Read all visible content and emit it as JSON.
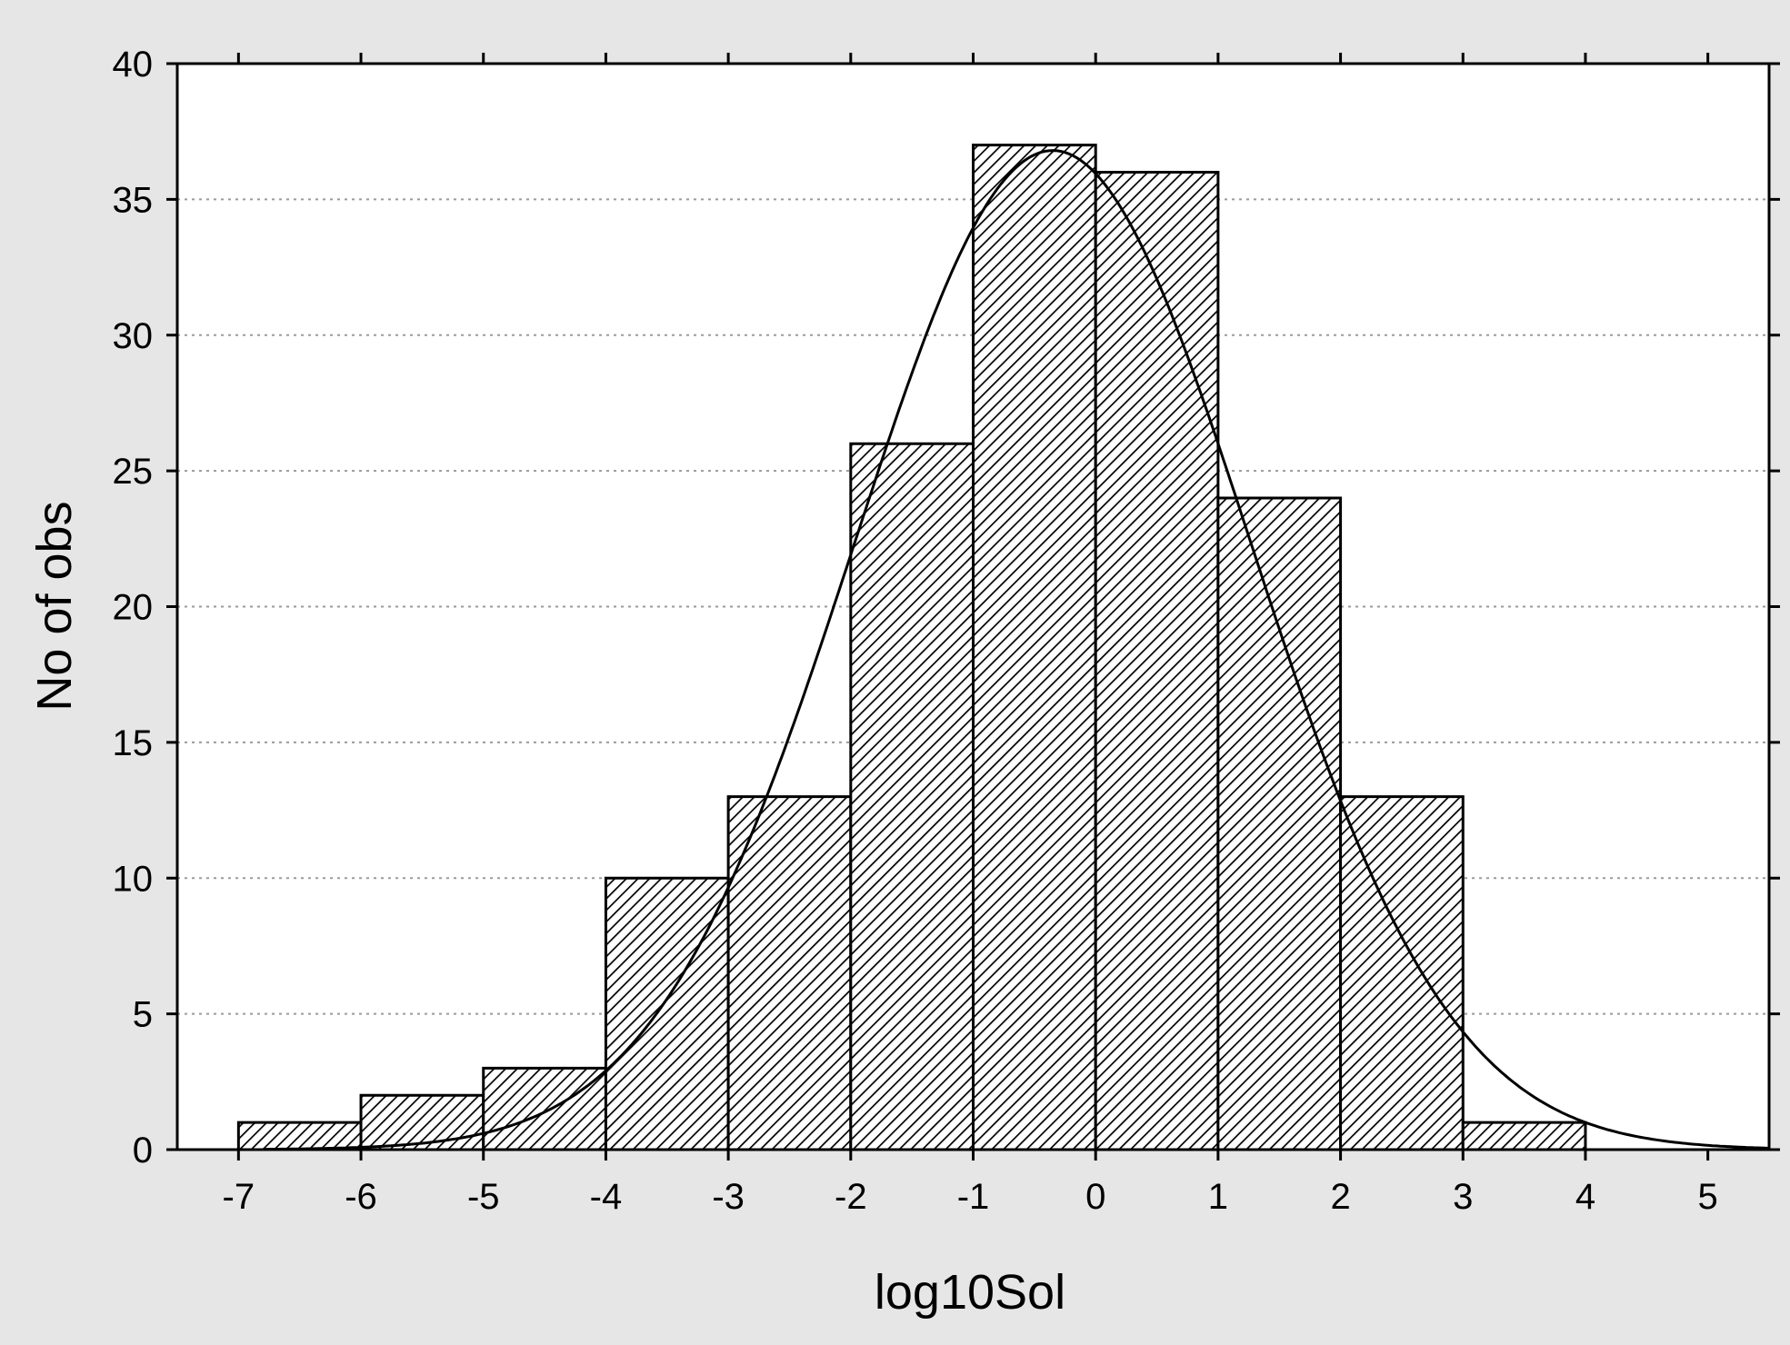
{
  "chart_data": {
    "type": "bar",
    "title": "",
    "xlabel": "log10Sol",
    "ylabel": "No of obs",
    "xlim": [
      -7.5,
      5.5
    ],
    "ylim": [
      0,
      40
    ],
    "x_ticks": [
      -7,
      -6,
      -5,
      -4,
      -3,
      -2,
      -1,
      0,
      1,
      2,
      3,
      4,
      5
    ],
    "y_ticks": [
      0,
      5,
      10,
      15,
      20,
      25,
      30,
      35,
      40
    ],
    "grid": "horizontal dotted",
    "bar_fill": "diagonal hatch",
    "bins": [
      {
        "from": -7,
        "to": -6,
        "count": 1
      },
      {
        "from": -6,
        "to": -5,
        "count": 2
      },
      {
        "from": -5,
        "to": -4,
        "count": 3
      },
      {
        "from": -4,
        "to": -3,
        "count": 10
      },
      {
        "from": -3,
        "to": -2,
        "count": 13
      },
      {
        "from": -2,
        "to": -1,
        "count": 26
      },
      {
        "from": -1,
        "to": 0,
        "count": 37
      },
      {
        "from": 0,
        "to": 1,
        "count": 36
      },
      {
        "from": 1,
        "to": 2,
        "count": 24
      },
      {
        "from": 2,
        "to": 3,
        "count": 13
      },
      {
        "from": 3,
        "to": 4,
        "count": 1
      }
    ],
    "fitted_curve": {
      "type": "normal",
      "mean": -0.35,
      "peak": 36.8,
      "sd": 1.62
    }
  },
  "colors": {
    "background": "#e6e6e6",
    "plot_area": "#ffffff",
    "ink": "#000000",
    "grid": "#9a9a9a"
  }
}
